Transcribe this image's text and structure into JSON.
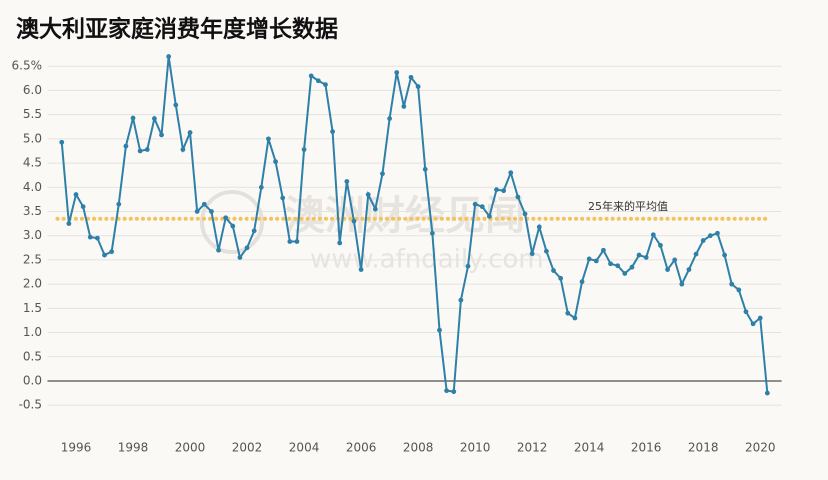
{
  "chart_data": {
    "type": "line",
    "title": "澳大利亚家庭消费年度增长数据",
    "watermark": [
      "澳洲财经见闻",
      "www.afndaily.com"
    ],
    "x": [
      1995.5,
      1995.75,
      1996,
      1996.25,
      1996.5,
      1996.75,
      1997,
      1997.25,
      1997.5,
      1997.75,
      1998,
      1998.25,
      1998.5,
      1998.75,
      1999,
      1999.25,
      1999.5,
      1999.75,
      2000,
      2000.25,
      2000.5,
      2000.75,
      2001,
      2001.25,
      2001.5,
      2001.75,
      2002,
      2002.25,
      2002.5,
      2002.75,
      2003,
      2003.25,
      2003.5,
      2003.75,
      2004,
      2004.25,
      2004.5,
      2004.75,
      2005,
      2005.25,
      2005.5,
      2005.75,
      2006,
      2006.25,
      2006.5,
      2006.75,
      2007,
      2007.25,
      2007.5,
      2007.75,
      2008,
      2008.25,
      2008.5,
      2008.75,
      2009,
      2009.25,
      2009.5,
      2009.75,
      2010,
      2010.25,
      2010.5,
      2010.75,
      2011,
      2011.25,
      2011.5,
      2011.75,
      2012,
      2012.25,
      2012.5,
      2012.75,
      2013,
      2013.25,
      2013.5,
      2013.75,
      2014,
      2014.25,
      2014.5,
      2014.75,
      2015,
      2015.25,
      2015.5,
      2015.75,
      2016,
      2016.25,
      2016.5,
      2016.75,
      2017,
      2017.25,
      2017.5,
      2017.75,
      2018,
      2018.25,
      2018.5,
      2018.75,
      2019,
      2019.25,
      2019.5,
      2019.75,
      2020,
      2020.25
    ],
    "series": [
      {
        "color": "#2e80a8",
        "values": [
          4.93,
          3.25,
          3.85,
          3.6,
          2.97,
          2.95,
          2.6,
          2.67,
          3.65,
          4.85,
          5.43,
          4.75,
          4.78,
          5.42,
          5.08,
          6.7,
          5.7,
          4.78,
          5.13,
          3.5,
          3.65,
          3.5,
          2.7,
          3.37,
          3.2,
          2.55,
          2.75,
          3.1,
          4.0,
          5.0,
          4.53,
          3.78,
          2.88,
          2.88,
          4.78,
          6.3,
          6.2,
          6.12,
          5.15,
          2.85,
          4.12,
          3.3,
          2.3,
          3.85,
          3.55,
          4.28,
          5.42,
          6.37,
          5.67,
          6.27,
          6.08,
          4.37,
          3.05,
          1.05,
          -0.2,
          -0.22,
          1.67,
          2.37,
          3.65,
          3.6,
          3.4,
          3.95,
          3.93,
          4.3,
          3.8,
          3.45,
          2.63,
          3.18,
          2.68,
          2.28,
          2.12,
          1.4,
          1.3,
          2.05,
          2.52,
          2.48,
          2.7,
          2.42,
          2.38,
          2.22,
          2.35,
          2.6,
          2.55,
          3.02,
          2.8,
          2.3,
          2.5,
          2.0,
          2.3,
          2.62,
          2.9,
          3.0,
          3.05,
          2.6,
          2.0,
          1.88,
          1.43,
          1.18,
          1.3,
          -0.25
        ]
      }
    ],
    "average": {
      "value": 3.35,
      "label": "25年来的平均值",
      "color": "#f2c35e"
    },
    "xlim": [
      1995,
      2020.75
    ],
    "xticks": [
      1996,
      1998,
      2000,
      2002,
      2004,
      2006,
      2008,
      2010,
      2012,
      2014,
      2016,
      2018,
      2020
    ],
    "ylim": [
      -0.8,
      6.8
    ],
    "yticks": [
      {
        "value": 6.5,
        "label": "6.5%"
      },
      {
        "value": 6,
        "label": "6.0"
      },
      {
        "value": 5.5,
        "label": "5.5"
      },
      {
        "value": 5,
        "label": "5.0"
      },
      {
        "value": 4.5,
        "label": "4.5"
      },
      {
        "value": 4,
        "label": "4.0"
      },
      {
        "value": 3.5,
        "label": "3.5"
      },
      {
        "value": 3,
        "label": "3.0"
      },
      {
        "value": 2.5,
        "label": "2.5"
      },
      {
        "value": 2,
        "label": "2.0"
      },
      {
        "value": 1.5,
        "label": "1.5"
      },
      {
        "value": 1,
        "label": "1.0"
      },
      {
        "value": 0.5,
        "label": "0.5"
      },
      {
        "value": 0,
        "label": "0.0"
      },
      -0.5
    ],
    "grid": true
  }
}
